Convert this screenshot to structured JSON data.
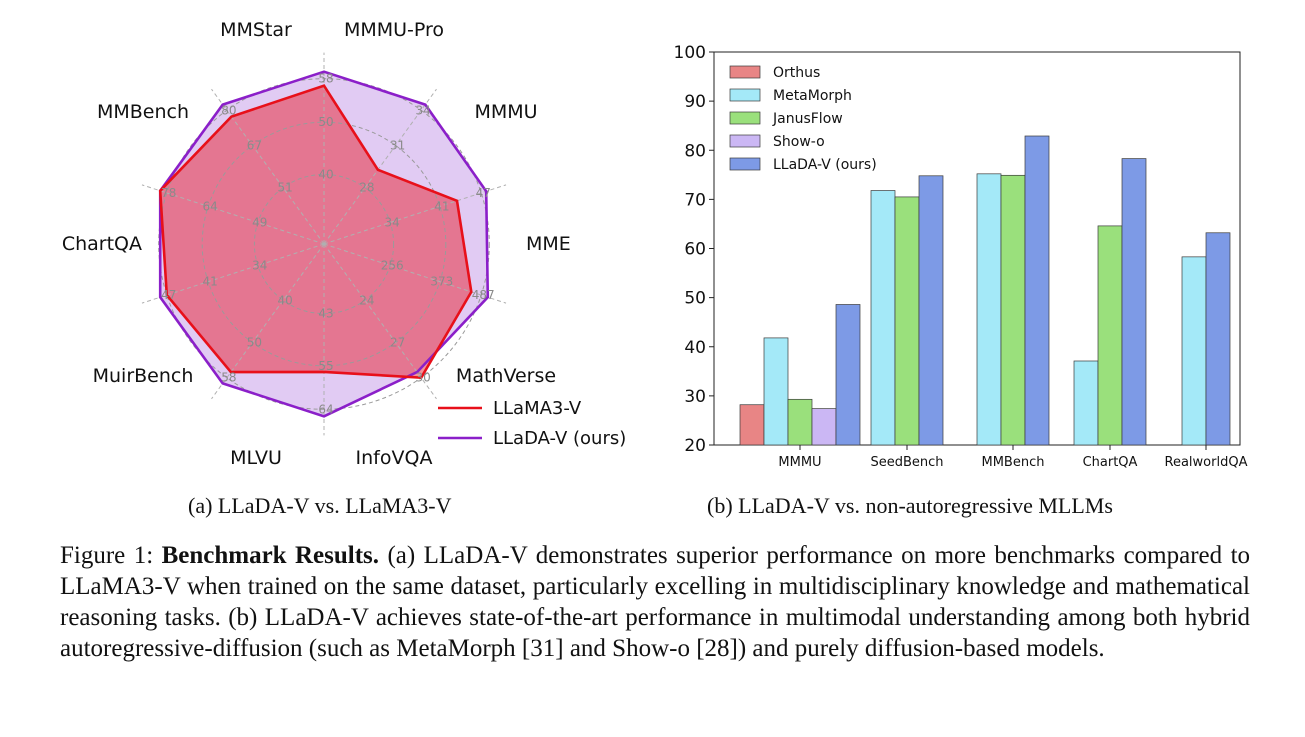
{
  "chart_data": [
    {
      "type": "radar",
      "axes": [
        {
          "label": "MMStar",
          "ticks": [
            "40",
            "50",
            "58"
          ],
          "max": 58
        },
        {
          "label": "MMMU-Pro",
          "ticks": [
            "28",
            "31",
            "34"
          ],
          "max": 34
        },
        {
          "label": "MMMU",
          "ticks": [
            "34",
            "41",
            "47"
          ],
          "max": 47
        },
        {
          "label": "MME",
          "ticks": [
            "256",
            "373",
            "487"
          ],
          "max": 487
        },
        {
          "label": "MathVerse",
          "ticks": [
            "24",
            "27",
            "30"
          ],
          "max": 30
        },
        {
          "label": "InfoVQA",
          "ticks": [
            "43",
            "55",
            "64"
          ],
          "max": 64
        },
        {
          "label": "MLVU",
          "ticks": [
            "40",
            "50",
            "58"
          ],
          "max": 58
        },
        {
          "label": "MuirBench",
          "ticks": [
            "34",
            "41",
            "47"
          ],
          "max": 47
        },
        {
          "label": "ChartQA",
          "ticks": [
            "49",
            "64",
            "78"
          ],
          "max": 78
        },
        {
          "label": "MMBench",
          "ticks": [
            "51",
            "67",
            "80"
          ],
          "max": 80
        }
      ],
      "series": [
        {
          "name": "LLaMA3-V",
          "color": "#e8101a",
          "fill": "#e8101a",
          "values": [
            0.91,
            0.527,
            0.804,
            0.89,
            0.95,
            0.735,
            0.91,
            0.95,
            0.99,
            0.905
          ]
        },
        {
          "name": "LLaDA-V (ours)",
          "color": "#8b1fc9",
          "fill": "#c9a0ea",
          "values": [
            0.99,
            0.99,
            0.98,
            0.99,
            0.91,
            0.99,
            0.99,
            0.99,
            0.99,
            0.99
          ]
        }
      ],
      "legend": "bottom-right"
    },
    {
      "type": "bar",
      "categories": [
        "MMMU",
        "SeedBench",
        "MMBench",
        "ChartQA",
        "RealworldQA"
      ],
      "ylim": [
        20,
        100
      ],
      "yticks": [
        "20",
        "30",
        "40",
        "50",
        "60",
        "70",
        "80",
        "90",
        "100"
      ],
      "series": [
        {
          "name": "Orthus",
          "color": "#e88585",
          "values": [
            28.2,
            null,
            null,
            null,
            null
          ]
        },
        {
          "name": "MetaMorph",
          "color": "#a4e9f8",
          "values": [
            41.8,
            71.8,
            75.2,
            37.1,
            58.3
          ]
        },
        {
          "name": "JanusFlow",
          "color": "#9ae07c",
          "values": [
            29.3,
            70.5,
            74.9,
            64.6,
            null
          ]
        },
        {
          "name": "Show-o",
          "color": "#cbb7f4",
          "values": [
            27.4,
            null,
            null,
            null,
            null
          ]
        },
        {
          "name": "LLaDA-V (ours)",
          "color": "#7d9ae6",
          "values": [
            48.6,
            74.8,
            82.9,
            78.3,
            63.2
          ]
        }
      ],
      "legend": "top-left"
    }
  ],
  "subcaptions": {
    "a": "(a) LLaDA-V vs. LLaMA3-V",
    "b": "(b) LLaDA-V vs. non-autoregressive MLLMs"
  },
  "caption": {
    "prefix": "Figure 1: ",
    "bold": "Benchmark Results.",
    "text": " (a) LLaDA-V demonstrates superior performance on more benchmarks compared to LLaMA3-V when trained on the same dataset, particularly excelling in multidisciplinary knowledge and mathematical reasoning tasks. (b) LLaDA-V achieves state-of-the-art performance in multimodal understanding among both hybrid autoregressive-diffusion (such as MetaMorph [31] and Show-o [28]) and purely diffusion-based models."
  }
}
